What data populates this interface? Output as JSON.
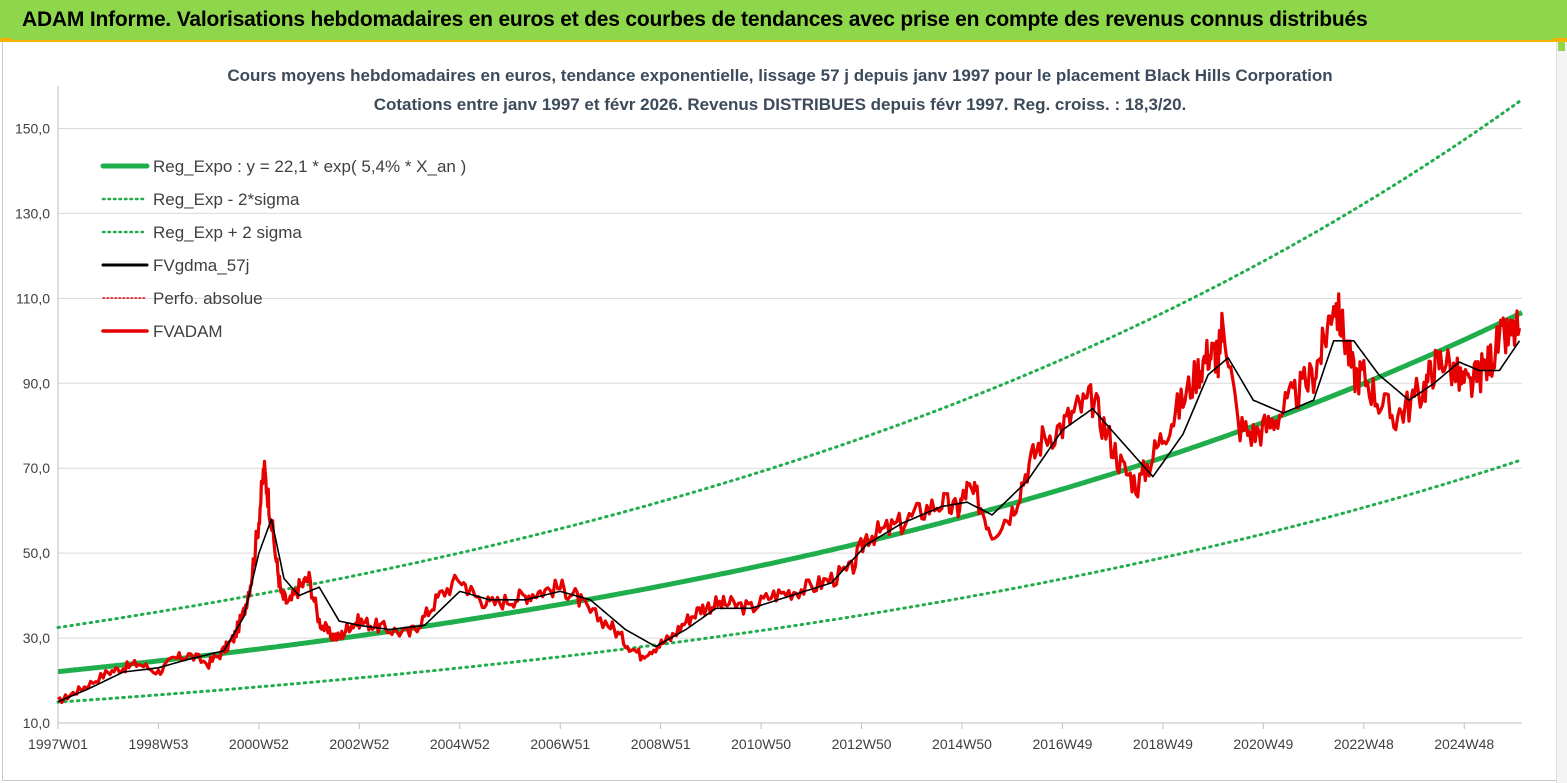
{
  "header": {
    "title": "ADAM Informe. Valorisations hebdomadaires en euros et des courbes de tendances avec prise en compte des revenus connus distribués"
  },
  "chart_data": {
    "type": "line",
    "title": "Cours moyens hebdomadaires en euros, tendance exponentielle, lissage 57 j depuis janv 1997 pour le placement Black Hills Corporation",
    "subtitle": "Cotations entre janv 1997 et févr 2026. Revenus DISTRIBUES depuis févr 1997. Reg. croiss. : 18,3/20.",
    "xlabel": "",
    "ylabel": "",
    "ylim": [
      10,
      160
    ],
    "xlim": [
      1997.0,
      2026.15
    ],
    "y_ticks": [
      "10,0",
      "30,0",
      "50,0",
      "70,0",
      "90,0",
      "110,0",
      "130,0",
      "150,0"
    ],
    "y_tick_values": [
      10,
      30,
      50,
      70,
      90,
      110,
      130,
      150
    ],
    "x_ticks": [
      "1997W01",
      "1998W53",
      "2000W52",
      "2002W52",
      "2004W52",
      "2006W51",
      "2008W51",
      "2010W50",
      "2012W50",
      "2014W50",
      "2016W49",
      "2018W49",
      "2020W49",
      "2022W48",
      "2024W48"
    ],
    "x_tick_values": [
      1997.0,
      1999.0,
      2001.0,
      2003.0,
      2005.0,
      2007.0,
      2009.0,
      2011.0,
      2013.0,
      2015.0,
      2017.0,
      2019.0,
      2021.0,
      2023.0,
      2025.0
    ],
    "grid": true,
    "legend_position": "top-left",
    "regression": {
      "a": 22.1,
      "rate": 0.054,
      "sigma_factor_low": 0.675,
      "sigma_factor_high": 1.47
    },
    "series": [
      {
        "name": "Reg_Expo : y = 22,1 * exp( 5,4% *  X_an )",
        "style": "thick",
        "color": "#1fae4b"
      },
      {
        "name": "Reg_Exp - 2*sigma",
        "style": "dotted",
        "color": "#1fae4b"
      },
      {
        "name": "Reg_Exp + 2 sigma",
        "style": "dotted",
        "color": "#1fae4b"
      },
      {
        "name": "FVgdma_57j",
        "style": "solid",
        "color": "#000000"
      },
      {
        "name": "Perfo. absolue",
        "style": "dotted",
        "color": "#e00000"
      },
      {
        "name": "FVADAM",
        "style": "thick",
        "color": "#e60000",
        "x": [
          1997.0,
          1997.3,
          1997.6,
          1998.0,
          1998.3,
          1998.6,
          1999.0,
          1999.3,
          1999.6,
          2000.0,
          2000.3,
          2000.5,
          2000.7,
          2000.85,
          2001.0,
          2001.1,
          2001.2,
          2001.35,
          2001.45,
          2001.6,
          2001.8,
          2002.0,
          2002.2,
          2002.4,
          2002.6,
          2002.8,
          2003.0,
          2003.3,
          2003.6,
          2004.0,
          2004.3,
          2004.6,
          2005.0,
          2005.3,
          2005.6,
          2006.0,
          2006.3,
          2006.6,
          2007.0,
          2007.3,
          2007.6,
          2008.0,
          2008.3,
          2008.6,
          2008.9,
          2009.2,
          2009.5,
          2009.8,
          2010.1,
          2010.4,
          2010.8,
          2011.2,
          2011.6,
          2012.0,
          2012.4,
          2012.8,
          2013.1,
          2013.4,
          2013.8,
          2014.2,
          2014.6,
          2014.9,
          2015.1,
          2015.3,
          2015.6,
          2016.0,
          2016.3,
          2016.6,
          2017.0,
          2017.3,
          2017.6,
          2017.9,
          2018.2,
          2018.5,
          2018.8,
          2019.1,
          2019.4,
          2019.7,
          2019.9,
          2020.05,
          2020.1,
          2020.2,
          2020.5,
          2020.8,
          2021.1,
          2021.4,
          2021.7,
          2022.0,
          2022.2,
          2022.4,
          2022.6,
          2022.8,
          2023.0,
          2023.3,
          2023.6,
          2023.9,
          2024.2,
          2024.4,
          2024.6,
          2024.9,
          2025.1,
          2025.3,
          2025.5,
          2025.7,
          2025.9,
          2026.1
        ],
        "y": [
          15,
          17,
          19,
          22,
          23,
          24,
          22,
          25,
          26,
          24,
          27,
          30,
          36,
          44,
          58,
          70,
          62,
          48,
          40,
          38,
          42,
          44,
          34,
          31,
          30,
          33,
          34,
          33,
          32,
          31,
          35,
          40,
          44,
          40,
          38,
          39,
          40,
          41,
          42,
          40,
          36,
          33,
          29,
          26,
          28,
          30,
          34,
          37,
          38,
          38,
          37,
          40,
          41,
          42,
          44,
          46,
          54,
          55,
          57,
          60,
          62,
          60,
          65,
          63,
          55,
          60,
          70,
          77,
          80,
          84,
          86,
          78,
          70,
          66,
          73,
          80,
          86,
          93,
          97,
          97,
          95,
          106,
          80,
          78,
          80,
          84,
          88,
          92,
          99,
          110,
          102,
          92,
          92,
          86,
          82,
          85,
          89,
          94,
          96,
          91,
          89,
          92,
          95,
          100,
          101,
          103
        ]
      },
      {
        "name": "FVgdma_57j_curve",
        "x": [
          1997.0,
          1997.6,
          1998.3,
          1999.0,
          1999.6,
          2000.3,
          2000.7,
          2001.0,
          2001.25,
          2001.5,
          2001.8,
          2002.2,
          2002.6,
          2003.0,
          2003.6,
          2004.3,
          2005.0,
          2005.6,
          2006.3,
          2007.0,
          2007.6,
          2008.3,
          2008.9,
          2009.5,
          2010.1,
          2010.8,
          2011.6,
          2012.4,
          2013.1,
          2013.8,
          2014.6,
          2015.1,
          2015.6,
          2016.3,
          2017.0,
          2017.6,
          2018.2,
          2018.8,
          2019.4,
          2019.9,
          2020.3,
          2020.8,
          2021.4,
          2022.0,
          2022.4,
          2022.8,
          2023.3,
          2023.9,
          2024.4,
          2024.9,
          2025.3,
          2025.7,
          2026.1
        ],
        "y": [
          15,
          18,
          22,
          23,
          25,
          27,
          35,
          50,
          58,
          44,
          40,
          42,
          34,
          33,
          32,
          33,
          41,
          39,
          39,
          41,
          39,
          32,
          28,
          32,
          37,
          37,
          40,
          43,
          52,
          57,
          61,
          62,
          59,
          67,
          79,
          84,
          76,
          68,
          78,
          92,
          96,
          86,
          83,
          86,
          100,
          100,
          92,
          86,
          90,
          95,
          93,
          93,
          100
        ]
      }
    ]
  }
}
